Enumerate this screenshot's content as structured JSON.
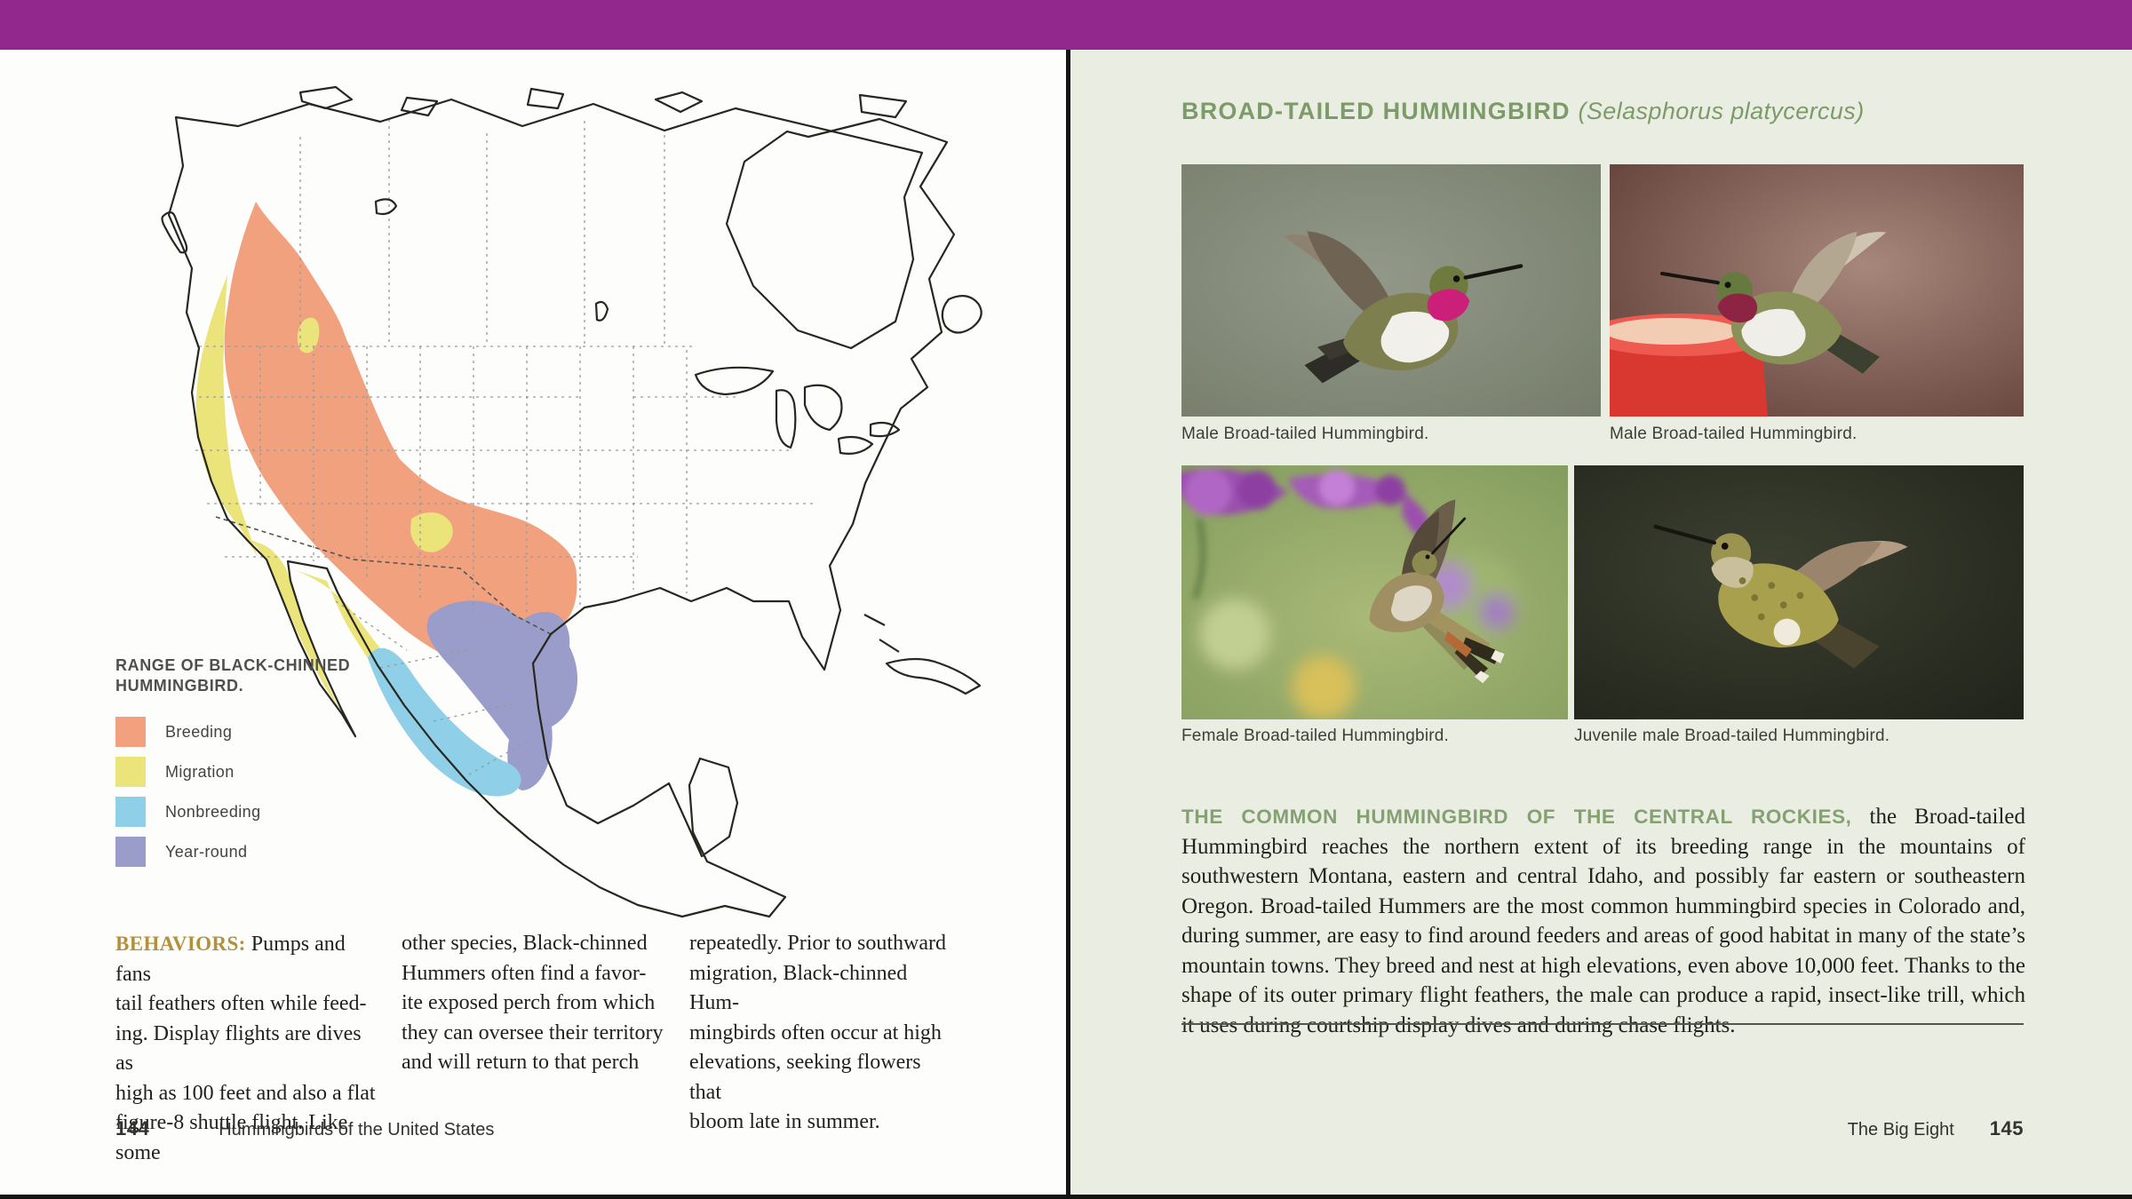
{
  "colors": {
    "accent_bar": "#92278e",
    "right_page_bg": "#eaeee2",
    "heading_green": "#7d9b68",
    "lead_green": "#85a072",
    "behaviors_gold": "#b3903a",
    "breeding": "#f2a17f",
    "migration": "#ebe47b",
    "nonbreeding": "#8fcfe8",
    "year_round": "#9a9cca"
  },
  "left_page": {
    "map": {
      "legend_title_lines": [
        "RANGE OF BLACK-CHINNED",
        "HUMMINGBIRD."
      ],
      "legend_items": [
        {
          "label": "Breeding"
        },
        {
          "label": "Migration"
        },
        {
          "label": "Nonbreeding"
        },
        {
          "label": "Year-round"
        }
      ]
    },
    "behaviors": {
      "label": "BEHAVIORS:",
      "col1_first_line": "Pumps and fans",
      "col1_lines": [
        "tail feathers often while feed-",
        "ing. Display flights are dives as",
        "high as 100 feet and also a flat",
        "figure-8 shuttle flight. Like some"
      ],
      "col2_lines": [
        "other species, Black-chinned",
        "Hummers often find a favor-",
        "ite exposed perch from which",
        "they can oversee their territory",
        "and will return to that perch"
      ],
      "col3_lines": [
        "repeatedly. Prior to southward",
        "migration, Black-chinned Hum-",
        "mingbirds often occur at high",
        "elevations, seeking flowers that",
        "bloom late in summer."
      ]
    },
    "footer": {
      "page_number": "144",
      "text": "Hummingbirds of the United States"
    }
  },
  "right_page": {
    "heading": {
      "title": "BROAD-TAILED HUMMINGBIRD",
      "species": "(Selasphorus platycercus)"
    },
    "photos": [
      {
        "caption": "Male Broad-tailed Hummingbird."
      },
      {
        "caption": "Male Broad-tailed Hummingbird."
      },
      {
        "caption": "Female Broad-tailed Hummingbird."
      },
      {
        "caption": "Juvenile male Broad-tailed Hummingbird."
      }
    ],
    "body": {
      "lead_in": "THE COMMON HUMMINGBIRD OF THE CENTRAL ROCKIES,",
      "text": " the Broad-tailed Hummingbird reaches the northern extent of its breeding range in the mountains of southwestern Montana, eastern and central Idaho, and possibly far eastern or southeastern Oregon. Broad-tailed Hummers are the most common hummingbird species in Colorado and, during summer, are easy to find around feeders and areas of good habitat in many of the state’s mountain towns. They breed and nest at high elevations, even above 10,000 feet. Thanks to the shape of its outer primary flight feathers, the male can produce a rapid, insect-like trill, which it uses during courtship display dives and during chase flights."
    },
    "footer": {
      "text": "The Big Eight",
      "page_number": "145"
    }
  }
}
